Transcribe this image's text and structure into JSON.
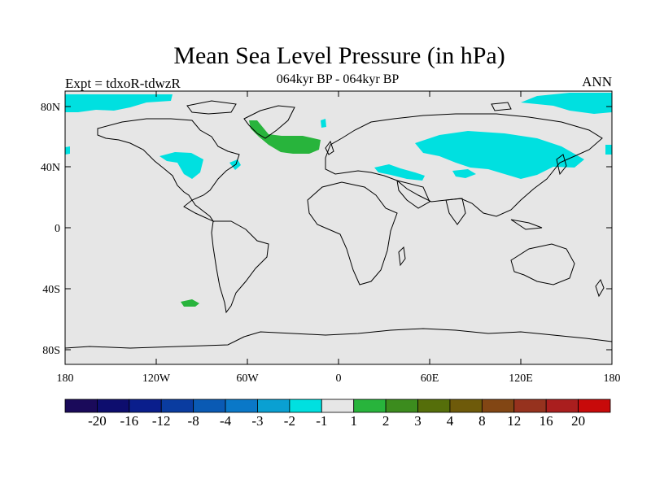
{
  "header": {
    "title": "Mean Sea Level Pressure (in hPa)",
    "subtitle": "064kyr BP - 064kyr BP",
    "left_label": "Expt = tdxoR-tdwzR",
    "right_label": "ANN"
  },
  "map": {
    "background_color": "#e6e6e6",
    "lon_ticks": [
      "180",
      "120W",
      "60W",
      "0",
      "60E",
      "120E",
      "180"
    ],
    "lat_ticks": [
      "80N",
      "40N",
      "0",
      "40S",
      "80S"
    ]
  },
  "colorbar": {
    "colors": [
      "#1a0a5a",
      "#0d0d6e",
      "#0a1e8c",
      "#0a3ca0",
      "#0a5ab4",
      "#0a78c8",
      "#0aa0d2",
      "#00e0e0",
      "#e6e6e6",
      "#28b43c",
      "#3c8c1e",
      "#556e0a",
      "#6e5a0a",
      "#824614",
      "#96321e",
      "#aa1e1e",
      "#c80a0a"
    ],
    "labels": [
      "-20",
      "-16",
      "-12",
      "-8",
      "-4",
      "-3",
      "-2",
      "-1",
      "1",
      "2",
      "3",
      "4",
      "8",
      "12",
      "16",
      "20"
    ]
  },
  "legend_colors": {
    "negative_small": "#00e0e0",
    "positive_small": "#28b43c"
  }
}
